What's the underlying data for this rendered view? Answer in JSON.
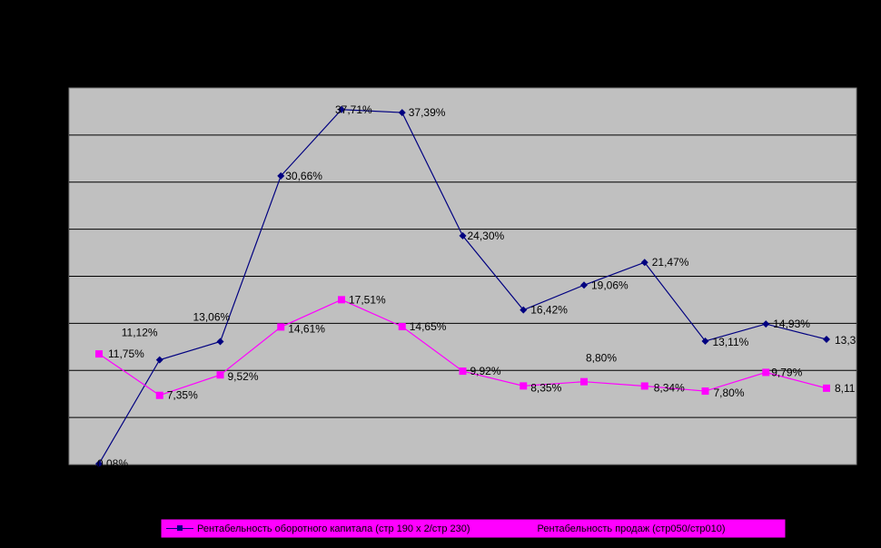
{
  "chart_data": {
    "type": "line",
    "categories": [
      "",
      "",
      "",
      "",
      "",
      "",
      "",
      "",
      "",
      "",
      "",
      "",
      ""
    ],
    "series": [
      {
        "name": "Рентабельность оборотного капитала (стр 190 х 2/стр 230)",
        "color": "#000080",
        "marker": "diamond",
        "values": [
          0.08,
          11.12,
          13.06,
          30.66,
          37.71,
          37.39,
          24.3,
          16.42,
          19.06,
          21.47,
          13.11,
          14.93,
          13.3
        ],
        "labels": [
          "0,08%",
          "11,12%",
          "13,06%",
          "30,66%",
          "37,71%",
          "37,39%",
          "24,30%",
          "16,42%",
          "19,06%",
          "21,47%",
          "13,11%",
          "14,93%",
          "13,3"
        ]
      },
      {
        "name": "Рентабельность продаж (стр050/стр010)",
        "color": "#FF00FF",
        "marker": "square",
        "values": [
          11.75,
          7.35,
          9.52,
          14.61,
          17.51,
          14.65,
          9.92,
          8.35,
          8.8,
          8.34,
          7.8,
          9.79,
          8.11
        ],
        "labels": [
          "11,75%",
          "7,35%",
          "9,52%",
          "14,61%",
          "17,51%",
          "14,65%",
          "9,92%",
          "8,35%",
          "8,80%",
          "8,34%",
          "7,80%",
          "9,79%",
          "8,11"
        ]
      }
    ],
    "ylim": [
      0,
      40
    ],
    "grid": true,
    "plot_background": "#C0C0C0",
    "page_background": "#000000",
    "legend_background": "#FF00FF",
    "legend_position": "bottom"
  }
}
